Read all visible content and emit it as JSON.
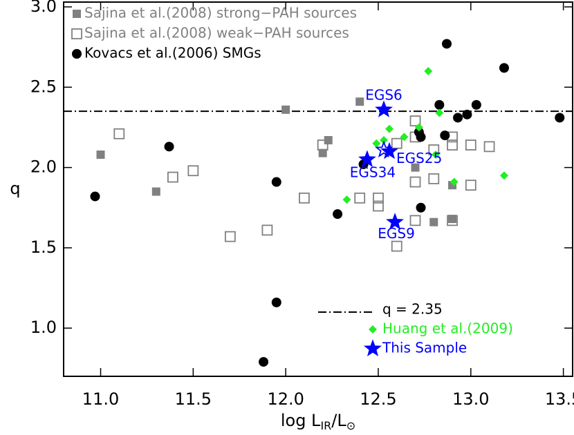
{
  "chart_data": {
    "type": "scatter",
    "xlabel": [
      "log L",
      "IR",
      "/L",
      "⊙"
    ],
    "ylabel": "q",
    "xlim": [
      10.8,
      13.55
    ],
    "ylim": [
      0.7,
      3.03
    ],
    "xticks": [
      {
        "value": 11,
        "label": "11.0"
      },
      11.5,
      {
        "value": 12,
        "label": "12.0"
      },
      12.5,
      {
        "value": 13,
        "label": "13.0"
      },
      13.5
    ],
    "yticks": [
      {
        "value": 1,
        "label": "1.0"
      },
      1.5,
      {
        "value": 2,
        "label": "2.0"
      },
      2.5,
      {
        "value": 3,
        "label": "3.0"
      }
    ],
    "hline": {
      "value": 2.35,
      "label": "q = 2.35",
      "color": "#000000"
    },
    "series": [
      {
        "name": "Sajina et al.(2008) strong−PAH sources",
        "color": "#808080",
        "marker": "square-filled",
        "legend": "upper left",
        "x": [
          11.0,
          11.3,
          12.0,
          12.2,
          12.23,
          12.4,
          12.7,
          12.8,
          12.9,
          12.9
        ],
        "values": [
          2.08,
          1.85,
          2.36,
          2.09,
          2.17,
          2.41,
          2.0,
          1.66,
          1.89,
          1.68
        ]
      },
      {
        "name": "Sajina et al.(2008) weak−PAH sources",
        "color": "#808080",
        "marker": "square-open",
        "legend": "upper left",
        "x": [
          11.1,
          11.39,
          11.5,
          11.7,
          11.9,
          12.1,
          12.2,
          12.4,
          12.5,
          12.5,
          12.6,
          12.6,
          12.7,
          12.7,
          12.7,
          12.7,
          12.8,
          12.8,
          12.9,
          12.9,
          12.9,
          13.0,
          13.0,
          13.1
        ],
        "values": [
          2.21,
          1.94,
          1.98,
          1.57,
          1.61,
          1.81,
          2.14,
          1.81,
          1.81,
          1.76,
          1.51,
          2.15,
          2.29,
          2.19,
          1.91,
          1.67,
          2.11,
          1.93,
          2.19,
          2.14,
          1.67,
          2.14,
          1.89,
          2.13
        ]
      },
      {
        "name": "Kovacs et al.(2006) SMGs",
        "color": "#000000",
        "marker": "circle",
        "legend": "upper left",
        "x": [
          10.97,
          11.37,
          11.95,
          11.95,
          11.88,
          12.28,
          12.42,
          12.72,
          12.73,
          12.73,
          12.83,
          12.86,
          12.87,
          12.93,
          12.98,
          13.03,
          13.18,
          13.48
        ],
        "values": [
          1.82,
          2.13,
          1.91,
          1.16,
          0.79,
          1.71,
          2.02,
          2.22,
          2.19,
          1.75,
          2.39,
          2.2,
          2.77,
          2.31,
          2.33,
          2.39,
          2.62,
          2.31
        ]
      },
      {
        "name": "Huang et al.(2009)",
        "color": "#22ee22",
        "marker": "diamond",
        "legend": "lower center",
        "x": [
          12.33,
          12.49,
          12.53,
          12.56,
          12.64,
          12.72,
          12.77,
          12.81,
          12.83,
          12.91,
          13.18
        ],
        "values": [
          1.8,
          2.15,
          2.17,
          2.24,
          2.19,
          2.25,
          2.6,
          2.08,
          2.34,
          1.91,
          1.95
        ]
      },
      {
        "name": "This Sample",
        "color": "#0000ff",
        "marker": "star",
        "legend": "lower center",
        "x": [
          12.53,
          12.56,
          12.53,
          12.44,
          12.59
        ],
        "values": [
          2.36,
          2.1,
          2.11,
          2.05,
          1.66
        ],
        "open": [
          false,
          false,
          true,
          false,
          false
        ],
        "labels": [
          "EGS6",
          "EGS25",
          null,
          "EGS34",
          "EGS9"
        ]
      }
    ]
  }
}
